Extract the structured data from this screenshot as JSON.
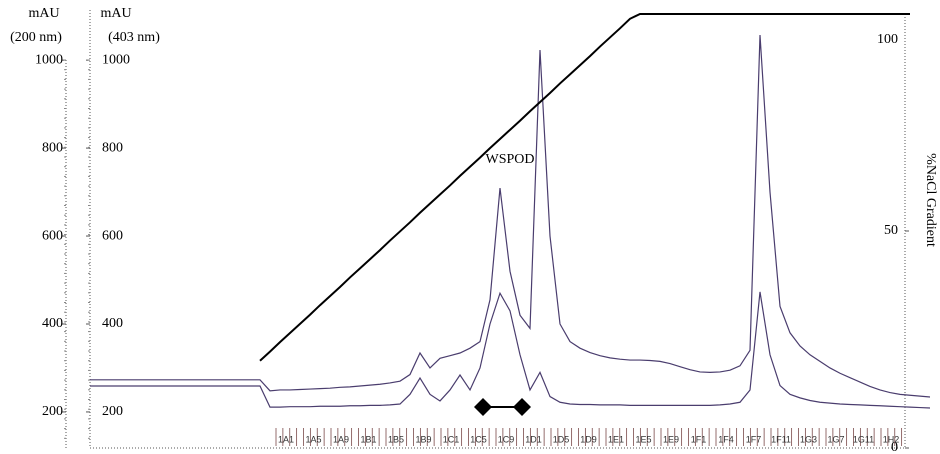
{
  "chart_data": {
    "type": "line",
    "y_axes": [
      {
        "title": [
          "mAU",
          "(200 nm)"
        ],
        "lim": [
          118,
          1114
        ],
        "ticks": [
          200,
          400,
          600,
          800,
          1000
        ]
      },
      {
        "title": [
          "mAU",
          "(403 nm)"
        ],
        "lim": [
          118,
          1114
        ],
        "ticks": [
          200,
          400,
          600,
          800,
          1000
        ]
      }
    ],
    "y2label": "%NaCl Gradient",
    "y2lim": [
      0,
      100
    ],
    "y2ticks": [
      0,
      50,
      100
    ],
    "annotation": "WSPOD",
    "fractions": [
      "1A1",
      "1A5",
      "1A9",
      "1B1",
      "1B5",
      "1B9",
      "1C1",
      "1C5",
      "1C9",
      "1D1",
      "1D5",
      "1D9",
      "1E1",
      "1E5",
      "1E9",
      "1F1",
      "1F4",
      "1F7",
      "1F11",
      "1G3",
      "1G7",
      "1G11",
      "1H2"
    ],
    "series": [
      {
        "color": "#4a3d6e",
        "axis": 0,
        "values": [
          273,
          273,
          273,
          273,
          273,
          273,
          273,
          273,
          273,
          273,
          273,
          273,
          273,
          273,
          273,
          273,
          273,
          273,
          248,
          250,
          250,
          251,
          252,
          253,
          254,
          256,
          257,
          259,
          261,
          263,
          266,
          270,
          285,
          334,
          300,
          322,
          328,
          334,
          345,
          360,
          455,
          709,
          520,
          420,
          390,
          1023,
          600,
          400,
          360,
          345,
          335,
          328,
          323,
          320,
          318,
          318,
          317,
          315,
          310,
          303,
          296,
          291,
          290,
          291,
          295,
          305,
          340,
          1057,
          700,
          440,
          380,
          350,
          330,
          315,
          300,
          288,
          278,
          268,
          258,
          250,
          244,
          240,
          238,
          236,
          234
        ]
      },
      {
        "color": "#4a3d6e",
        "axis": 1,
        "values": [
          259,
          259,
          259,
          259,
          259,
          259,
          259,
          259,
          259,
          259,
          259,
          259,
          259,
          259,
          259,
          259,
          259,
          259,
          211,
          211,
          212,
          212,
          212,
          213,
          213,
          213,
          214,
          214,
          215,
          215,
          216,
          218,
          240,
          277,
          240,
          225,
          250,
          284,
          250,
          300,
          400,
          470,
          430,
          330,
          250,
          290,
          235,
          222,
          218,
          217,
          217,
          216,
          216,
          216,
          215,
          215,
          215,
          215,
          215,
          215,
          215,
          215,
          215,
          216,
          218,
          222,
          250,
          473,
          330,
          260,
          240,
          232,
          226,
          222,
          220,
          218,
          217,
          216,
          215,
          214,
          213,
          212,
          211,
          210,
          209
        ]
      },
      {
        "color": "#000000",
        "axis": "y2",
        "values": [
          null,
          null,
          null,
          null,
          null,
          null,
          null,
          null,
          null,
          null,
          null,
          null,
          null,
          null,
          null,
          null,
          null,
          20.1,
          22.2,
          24.4,
          26.5,
          28.6,
          30.7,
          32.9,
          35.0,
          37.1,
          39.3,
          41.4,
          43.5,
          45.6,
          47.8,
          49.9,
          52.0,
          54.2,
          56.3,
          58.4,
          60.5,
          62.7,
          64.8,
          66.9,
          69.1,
          71.2,
          73.3,
          75.4,
          77.6,
          79.7,
          81.8,
          84.0,
          86.1,
          88.2,
          90.3,
          92.5,
          94.6,
          96.7,
          98.9,
          100,
          100,
          100,
          100,
          100,
          100,
          100,
          100,
          100,
          100,
          100,
          100,
          100,
          100,
          100,
          100,
          100,
          100,
          100,
          100,
          100,
          100,
          100,
          100,
          100,
          100,
          100,
          100,
          null,
          null,
          null
        ]
      }
    ]
  }
}
